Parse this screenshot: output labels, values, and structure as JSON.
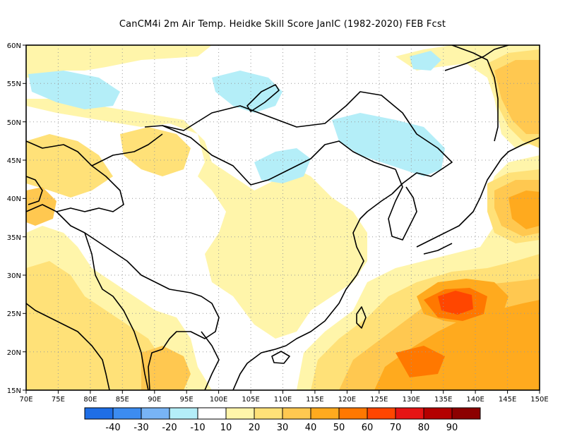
{
  "title": "CanCM4i  2m Air Temp. Heidke Skill Score JanIC (1982-2020) FEB Fcst",
  "axes": {
    "x_ticks": [
      "70E",
      "75E",
      "80E",
      "85E",
      "90E",
      "95E",
      "100E",
      "105E",
      "110E",
      "115E",
      "120E",
      "125E",
      "130E",
      "135E",
      "140E",
      "145E",
      "150E"
    ],
    "y_ticks": [
      "60N",
      "55N",
      "50N",
      "45N",
      "40N",
      "35N",
      "30N",
      "25N",
      "20N",
      "15N"
    ]
  },
  "colorbar": {
    "colors": [
      "#1e6ee6",
      "#3c8cf0",
      "#78b4f5",
      "#b4eef8",
      "#ffffff",
      "#fff5aa",
      "#ffe178",
      "#ffc850",
      "#ffaa1e",
      "#ff7800",
      "#ff4600",
      "#e61414",
      "#b40000",
      "#8c0000"
    ],
    "labels": [
      "-40",
      "-30",
      "-20",
      "-10",
      "10",
      "20",
      "30",
      "40",
      "50",
      "60",
      "70",
      "80",
      "90"
    ]
  },
  "colors": {
    "light_yellow": "#fff5aa",
    "yellow": "#ffe178",
    "light_orange": "#ffc850",
    "orange": "#ffaa1e",
    "dark_orange": "#ff7800",
    "red_orange": "#ff4600",
    "light_blue": "#b4eef8"
  }
}
